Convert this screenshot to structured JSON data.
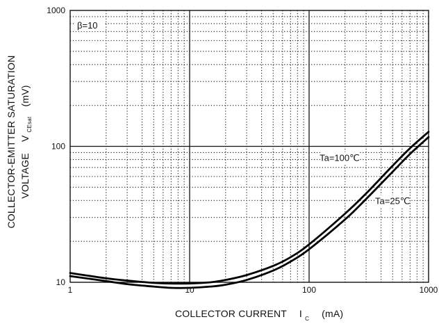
{
  "chart_data": {
    "type": "line",
    "x_scale": "log",
    "y_scale": "log",
    "xlim": [
      1,
      1000
    ],
    "ylim": [
      10,
      1000
    ],
    "grid": true,
    "x_ticks": [
      1,
      10,
      100,
      1000
    ],
    "y_ticks": [
      10,
      100,
      1000
    ],
    "x_tick_labels": [
      "1",
      "10",
      "100",
      "1000"
    ],
    "y_tick_labels": [
      "10",
      "100",
      "1000"
    ],
    "xlabel": {
      "main": "COLLECTOR CURRENT",
      "symbol": "I",
      "subscript": "C",
      "unit": "(mA)"
    },
    "ylabel": {
      "line1": "COLLECTOR-EMITTER SATURATION",
      "line2_prefix": "VOLTAGE",
      "symbol": "V",
      "subscript": "CEsat",
      "unit": "(mV)"
    },
    "condition_label": "β=10",
    "series": [
      {
        "name": "Ta=100℃",
        "points": [
          [
            1,
            11.7
          ],
          [
            2,
            10.7
          ],
          [
            3,
            10.3
          ],
          [
            5,
            9.9
          ],
          [
            7,
            9.8
          ],
          [
            10,
            9.8
          ],
          [
            15,
            10.0
          ],
          [
            20,
            10.4
          ],
          [
            30,
            11.3
          ],
          [
            50,
            13.2
          ],
          [
            70,
            15.3
          ],
          [
            100,
            19.0
          ],
          [
            200,
            32.0
          ],
          [
            300,
            45.0
          ],
          [
            500,
            72.0
          ],
          [
            700,
            97.0
          ],
          [
            1000,
            128.0
          ]
        ]
      },
      {
        "name": "Ta=25℃",
        "points": [
          [
            1,
            11.1
          ],
          [
            2,
            10.2
          ],
          [
            3,
            9.7
          ],
          [
            5,
            9.3
          ],
          [
            7,
            9.1
          ],
          [
            10,
            9.1
          ],
          [
            15,
            9.3
          ],
          [
            20,
            9.6
          ],
          [
            30,
            10.4
          ],
          [
            50,
            12.2
          ],
          [
            70,
            14.2
          ],
          [
            100,
            17.5
          ],
          [
            200,
            29.0
          ],
          [
            300,
            41.0
          ],
          [
            500,
            65.0
          ],
          [
            700,
            88.0
          ],
          [
            1000,
            117.0
          ]
        ]
      }
    ],
    "annotations": [
      {
        "text": "Ta=100℃",
        "x": 180,
        "y": 79
      },
      {
        "text": "Ta=25℃",
        "x": 500,
        "y": 38
      }
    ]
  }
}
